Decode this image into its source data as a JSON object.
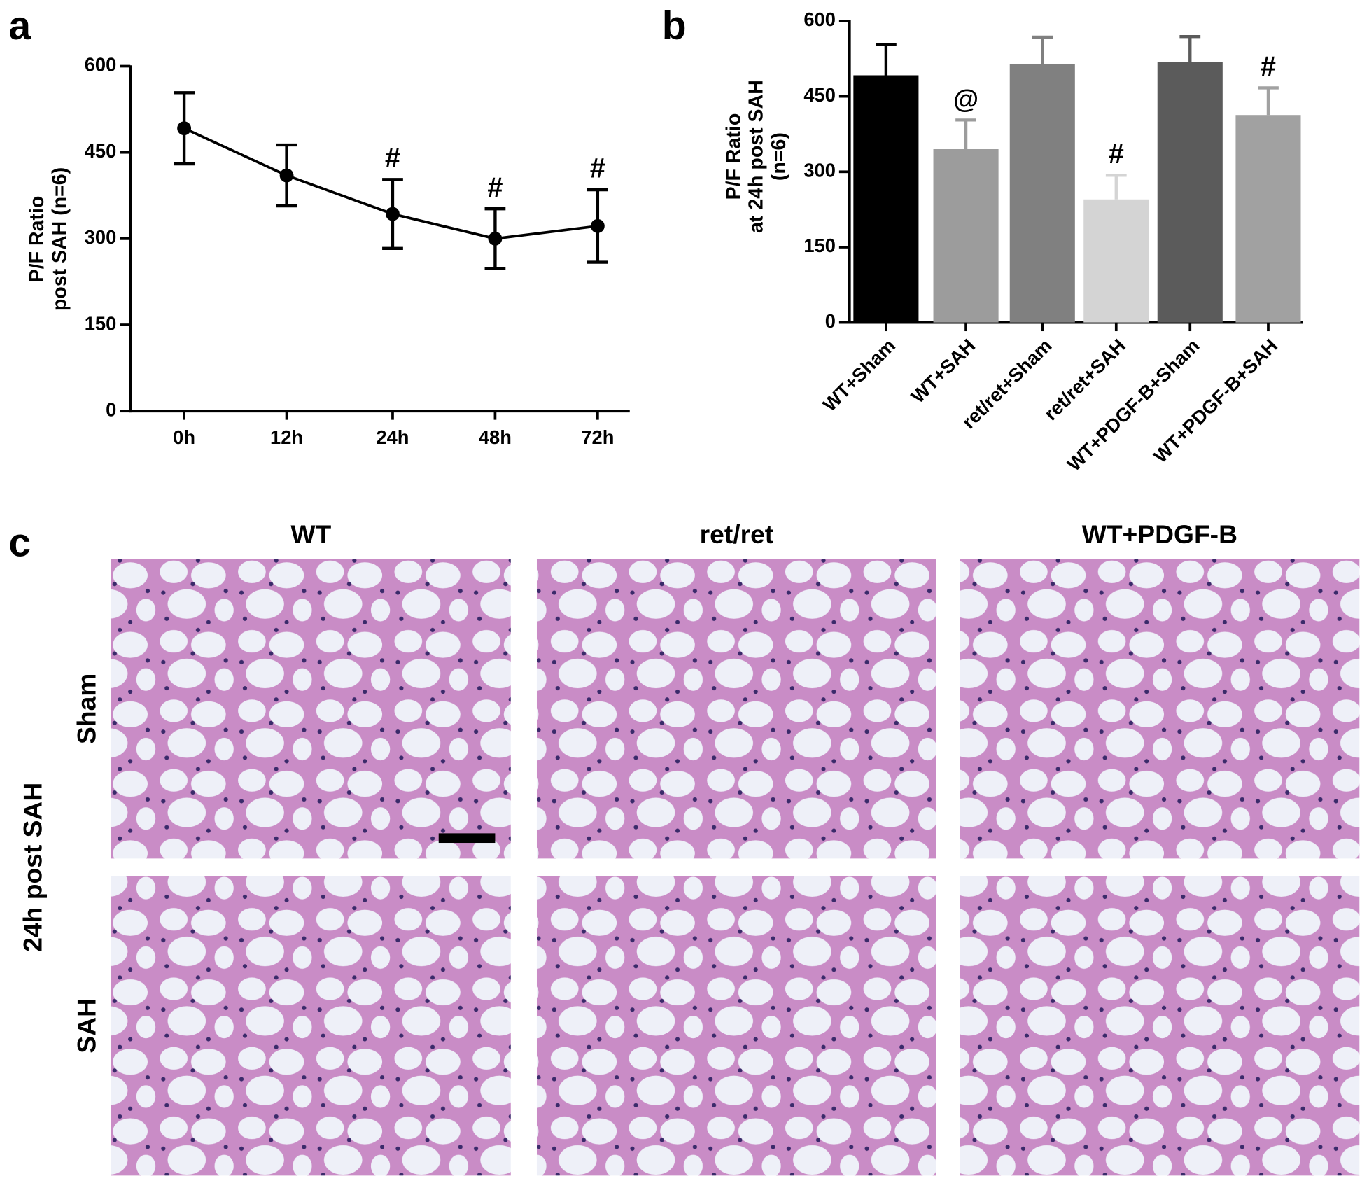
{
  "chart_data": [
    {
      "type": "line",
      "panel_label": "a",
      "ylabel": [
        "P/F Ratio",
        "post SAH (n=6)"
      ],
      "categories": [
        "0h",
        "12h",
        "24h",
        "48h",
        "72h"
      ],
      "values": [
        492,
        410,
        343,
        300,
        322
      ],
      "errors": [
        62,
        53,
        60,
        52,
        63
      ],
      "annotations": [
        null,
        null,
        "#",
        "#",
        "#"
      ],
      "color": "#000000",
      "ylim": [
        0,
        600
      ],
      "yticks": [
        0,
        150,
        300,
        450,
        600
      ]
    },
    {
      "type": "bar",
      "panel_label": "b",
      "ylabel": [
        "P/F Ratio",
        "at 24h post SAH",
        "(n=6)"
      ],
      "categories": [
        "WT+Sham",
        "WT+SAH",
        "ret/ret+Sham",
        "ret/ret+SAH",
        "WT+PDGF-B+Sham",
        "WT+PDGF-B+SAH"
      ],
      "values": [
        492,
        345,
        515,
        245,
        518,
        413
      ],
      "errors": [
        61,
        58,
        53,
        48,
        51,
        54
      ],
      "annotations": [
        null,
        "@",
        null,
        "#",
        null,
        "#"
      ],
      "colors": [
        "#000000",
        "#9c9c9c",
        "#808080",
        "#d4d4d4",
        "#5b5b5b",
        "#a1a1a1"
      ],
      "ylim": [
        0,
        600
      ],
      "yticks": [
        0,
        150,
        300,
        450,
        600
      ]
    }
  ],
  "histology": {
    "panel_label": "c",
    "side_label": "24h post SAH",
    "columns": [
      "WT",
      "ret/ret",
      "WT+PDGF-B"
    ],
    "rows": [
      "Sham",
      "SAH"
    ]
  }
}
